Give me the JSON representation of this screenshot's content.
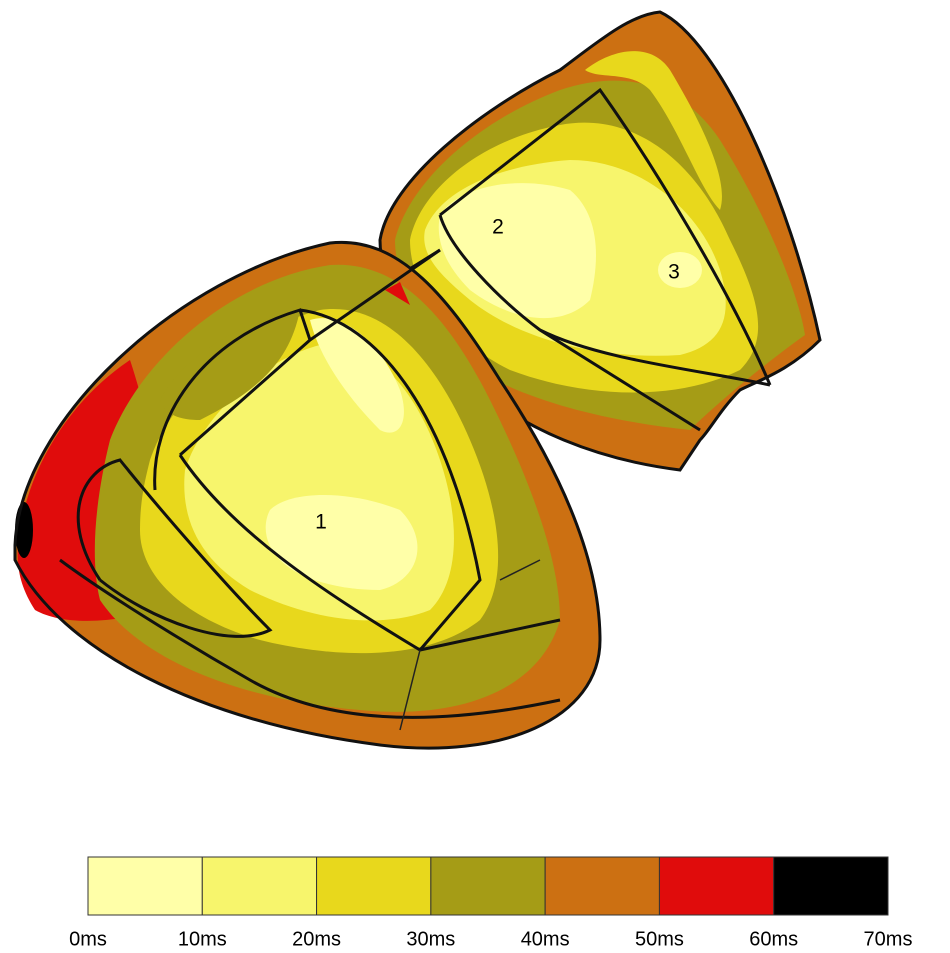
{
  "labels": [
    "1",
    "2",
    "3"
  ],
  "colorbar": {
    "colors": [
      "#ffffa8",
      "#f7f56c",
      "#e8d81c",
      "#a59c16",
      "#cc7012",
      "#e00c0c",
      "#000000"
    ],
    "ticks": [
      "0ms",
      "10ms",
      "20ms",
      "30ms",
      "40ms",
      "50ms",
      "60ms",
      "70ms"
    ]
  }
}
